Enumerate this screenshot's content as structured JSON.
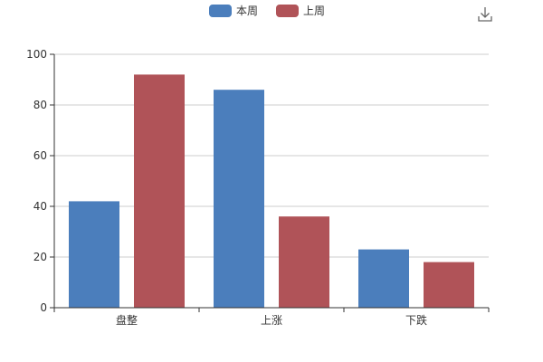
{
  "chart_data": {
    "type": "bar",
    "categories": [
      "盘整",
      "上涨",
      "下跌"
    ],
    "series": [
      {
        "name": "本周",
        "values": [
          42,
          86,
          23
        ],
        "color": "#4b7ebc"
      },
      {
        "name": "上周",
        "values": [
          92,
          36,
          18
        ],
        "color": "#b05358"
      }
    ],
    "ylim": [
      0,
      100
    ],
    "yticks": [
      0,
      20,
      40,
      60,
      80,
      100
    ],
    "grid": true,
    "legend": "top-center"
  },
  "toolbar": {
    "download_icon": "download-icon"
  }
}
